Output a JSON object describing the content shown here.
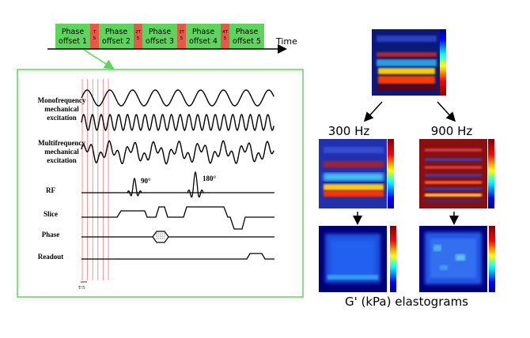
{
  "timeline": {
    "phase_blocks": [
      {
        "line1": "Phase",
        "line2": "offset 1"
      },
      {
        "line1": "Phase",
        "line2": "offset 2"
      },
      {
        "line1": "Phase",
        "line2": "offset 3"
      },
      {
        "line1": "Phase",
        "line2": "offset 4"
      },
      {
        "line1": "Phase",
        "line2": "offset 5"
      }
    ],
    "delays": [
      {
        "top": "T",
        "bottom": "5"
      },
      {
        "top": "2T",
        "bottom": "5"
      },
      {
        "top": "3T",
        "bottom": "5"
      },
      {
        "top": "4T",
        "bottom": "5"
      }
    ],
    "time_label": "Time",
    "block_color": "#5dd55d",
    "delay_color": "#e8584a"
  },
  "sequence": {
    "rows": [
      {
        "line1": "Monofrequency",
        "line2": "mechanical",
        "line3": "excitation"
      },
      {
        "line1": "Multifrequency",
        "line2": "mechanical",
        "line3": "excitation"
      },
      {
        "line1": "RF"
      },
      {
        "line1": "Slice"
      },
      {
        "line1": "Phase"
      },
      {
        "line1": "Readout"
      }
    ],
    "pulse_90": "90°",
    "pulse_180": "180°",
    "tick_label": "T/5",
    "frame_color": "#5dd55d"
  },
  "elastography": {
    "freq_low": "300 Hz",
    "freq_high": "900 Hz",
    "caption": "G' (kPa) elastograms"
  }
}
